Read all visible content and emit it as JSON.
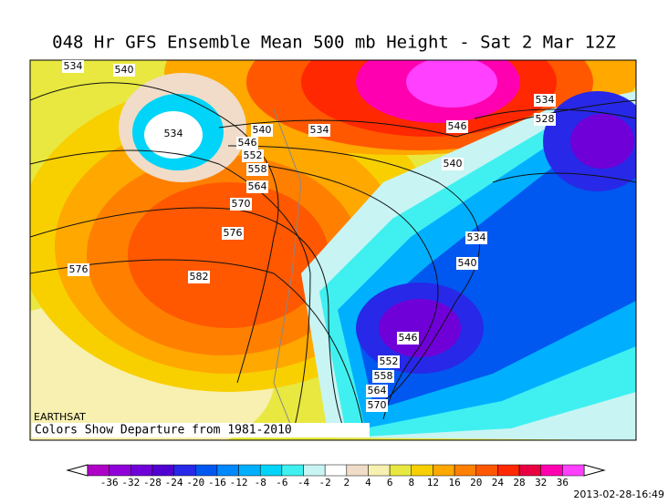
{
  "title": "048 Hr GFS Ensemble Mean 500 mb Height - Sat 2 Mar 12Z",
  "credit": "EARTHSAT",
  "note": "Colors Show Departure from 1981-2010",
  "timestamp": "2013-02-28-16:49",
  "contour_labels": [
    534,
    540,
    534,
    540,
    546,
    552,
    558,
    564,
    570,
    576,
    576,
    582,
    534,
    546,
    540,
    534,
    528,
    534,
    540,
    546,
    552,
    558,
    564,
    570
  ],
  "colorbar": {
    "labels": [
      -36,
      -32,
      -28,
      -24,
      -20,
      -16,
      -12,
      -8,
      -6,
      -4,
      -2,
      2,
      4,
      6,
      8,
      12,
      16,
      20,
      24,
      28,
      32,
      36
    ],
    "colors": [
      "#b000c8",
      "#9000d8",
      "#7000d8",
      "#5000d0",
      "#2828e8",
      "#0058f0",
      "#0088ff",
      "#00b0ff",
      "#00d4f8",
      "#40f0f0",
      "#c8f4f4",
      "#ffffff",
      "#f0dcc8",
      "#f8f0b0",
      "#e8e840",
      "#f8d000",
      "#ffa800",
      "#ff8000",
      "#ff5800",
      "#ff2800",
      "#e80040",
      "#ff00b0",
      "#ff40ff"
    ]
  }
}
